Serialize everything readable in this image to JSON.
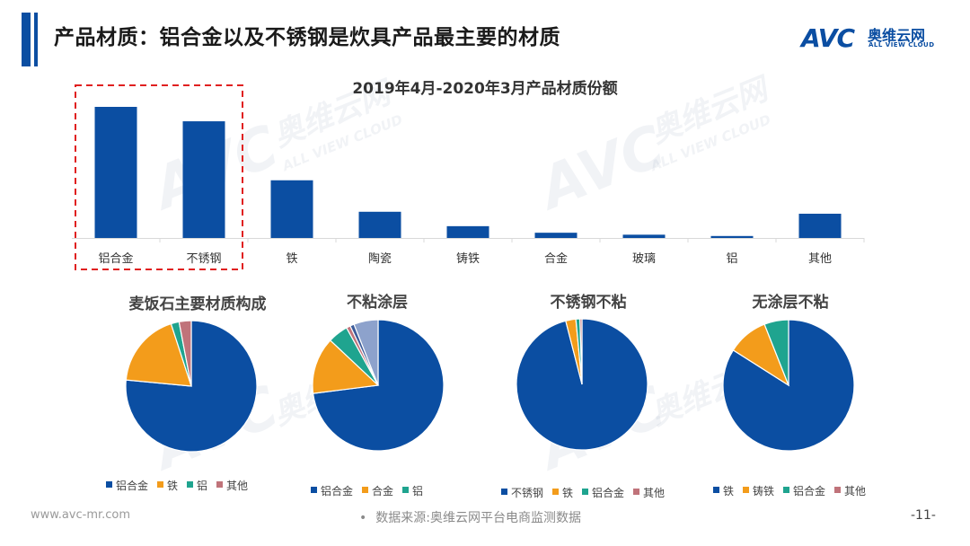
{
  "header": {
    "title": "产品材质：铝合金以及不锈钢是炊具产品最主要的材质",
    "logo_mark": "AVC",
    "logo_cn": "奥维云网",
    "logo_en": "ALL VIEW CLOUD"
  },
  "watermark": {
    "mark": "AVC",
    "cn": "奥维云网",
    "en": "ALL VIEW CLOUD"
  },
  "footer": {
    "url": "www.avc-mr.com",
    "source_bullet": "•",
    "source": "数据来源:奥维云网平台电商监测数据",
    "page": "-11-"
  },
  "colors": {
    "bar": "#0b4ea2",
    "highlight_box": "#e02020",
    "pie": [
      "#0b4ea2",
      "#f39c1b",
      "#1fa48f",
      "#c0737a",
      "#8da2cc",
      "#3b5b9a",
      "#5fa0d0"
    ]
  },
  "chart_data": [
    {
      "type": "bar",
      "title": "2019年4月-2020年3月产品材质份额",
      "categories": [
        "铝合金",
        "不锈钢",
        "铁",
        "陶瓷",
        "铸铁",
        "合金",
        "玻璃",
        "铝",
        "其他"
      ],
      "values": [
        100,
        89,
        44,
        20,
        9,
        4,
        2.5,
        1.5,
        18.5
      ],
      "highlighted": [
        "铝合金",
        "不锈钢"
      ],
      "ylim": [
        0,
        100
      ]
    },
    {
      "type": "pie",
      "title": "麦饭石主要材质构成",
      "slices": [
        {
          "name": "铝合金",
          "value": 76.5,
          "color_index": 0
        },
        {
          "name": "铁",
          "value": 18.5,
          "color_index": 1
        },
        {
          "name": "铝",
          "value": 2,
          "color_index": 2
        },
        {
          "name": "其他",
          "value": 3,
          "color_index": 3
        }
      ]
    },
    {
      "type": "pie",
      "title": "不粘涂层",
      "slices": [
        {
          "name": "铝合金",
          "value": 73,
          "color_index": 0
        },
        {
          "name": "合金",
          "value": 14,
          "color_index": 1
        },
        {
          "name": "铝",
          "value": 5,
          "color_index": 2
        },
        {
          "name": "",
          "value": 1,
          "color_index": 3
        },
        {
          "name": "",
          "value": 1,
          "color_index": 5
        },
        {
          "name": "",
          "value": 6,
          "color_index": 4
        }
      ]
    },
    {
      "type": "pie",
      "title": "不锈钢不粘",
      "slices": [
        {
          "name": "不锈钢",
          "value": 96,
          "color_index": 0
        },
        {
          "name": "铁",
          "value": 2.5,
          "color_index": 1
        },
        {
          "name": "铝合金",
          "value": 1,
          "color_index": 2
        },
        {
          "name": "其他",
          "value": 0.5,
          "color_index": 3
        }
      ]
    },
    {
      "type": "pie",
      "title": "无涂层不粘",
      "slices": [
        {
          "name": "铁",
          "value": 84,
          "color_index": 0
        },
        {
          "name": "铸铁",
          "value": 10,
          "color_index": 1
        },
        {
          "name": "铝合金",
          "value": 6,
          "color_index": 2
        },
        {
          "name": "其他",
          "value": 0,
          "color_index": 3
        }
      ]
    }
  ]
}
